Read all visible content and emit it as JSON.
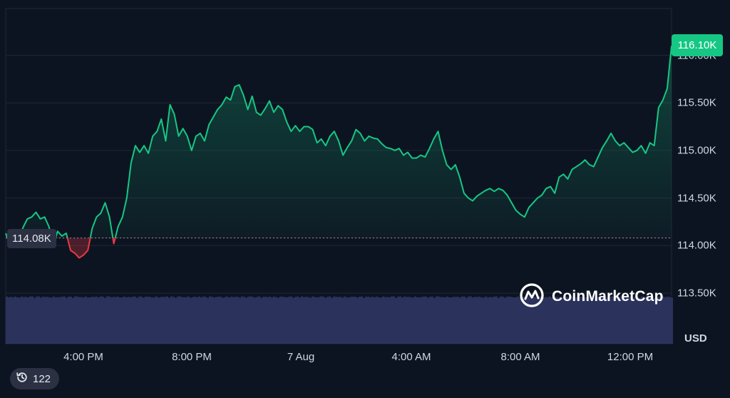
{
  "badges": {
    "last_price": "116.10K",
    "open_price": "114.08K"
  },
  "brand": {
    "name": "CoinMarketCap",
    "icon": "coinmarketcap-logo-icon"
  },
  "history": {
    "count": "122",
    "icon": "history-clock-icon"
  },
  "colors": {
    "up": "#16c784",
    "down": "#ea3943",
    "volume": "#2b335c",
    "background": "#0d1421"
  },
  "chart_data": {
    "type": "area",
    "open_reference": 114.08,
    "x_ticks": [
      "4:00 PM",
      "8:00 PM",
      "7 Aug",
      "4:00 AM",
      "8:00 AM",
      "12:00 PM"
    ],
    "y_ticks": [
      "113.50K",
      "114.00K",
      "114.50K",
      "115.00K",
      "115.50K",
      "116.00K"
    ],
    "y_unit": "USD",
    "ylim": [
      113.5,
      116.5
    ],
    "series": [
      {
        "values": [
          114.13,
          114.0,
          114.05,
          114.07,
          114.19,
          114.28,
          114.3,
          114.35,
          114.28,
          114.3,
          114.2,
          114.0,
          114.15,
          114.1,
          114.13,
          113.95,
          113.92,
          113.87,
          113.9,
          113.95,
          114.18,
          114.3,
          114.34,
          114.45,
          114.3,
          114.02,
          114.2,
          114.3,
          114.5,
          114.87,
          115.05,
          114.98,
          115.05,
          114.97,
          115.15,
          115.2,
          115.33,
          115.1,
          115.48,
          115.38,
          115.15,
          115.23,
          115.15,
          115.0,
          115.15,
          115.18,
          115.1,
          115.27,
          115.35,
          115.43,
          115.48,
          115.56,
          115.53,
          115.67,
          115.69,
          115.58,
          115.43,
          115.57,
          115.4,
          115.37,
          115.44,
          115.52,
          115.4,
          115.47,
          115.43,
          115.3,
          115.2,
          115.26,
          115.2,
          115.25,
          115.25,
          115.22,
          115.08,
          115.12,
          115.05,
          115.15,
          115.2,
          115.1,
          114.95,
          115.03,
          115.1,
          115.22,
          115.18,
          115.1,
          115.15,
          115.13,
          115.12,
          115.07,
          115.03,
          115.02,
          115.0,
          115.02,
          114.95,
          114.98,
          114.92,
          114.92,
          114.95,
          114.93,
          115.02,
          115.12,
          115.2,
          115.0,
          114.85,
          114.8,
          114.85,
          114.72,
          114.55,
          114.5,
          114.47,
          114.52,
          114.55,
          114.58,
          114.6,
          114.57,
          114.6,
          114.58,
          114.53,
          114.45,
          114.37,
          114.33,
          114.3,
          114.4,
          114.45,
          114.5,
          114.53,
          114.6,
          114.62,
          114.55,
          114.72,
          114.75,
          114.7,
          114.8,
          114.83,
          114.86,
          114.9,
          114.85,
          114.83,
          114.93,
          115.03,
          115.1,
          115.18,
          115.1,
          115.05,
          115.08,
          115.03,
          114.98,
          115.0,
          115.05,
          114.97,
          115.08,
          115.05,
          115.45,
          115.53,
          115.65,
          116.1
        ]
      }
    ],
    "volume_level": 0.95
  }
}
